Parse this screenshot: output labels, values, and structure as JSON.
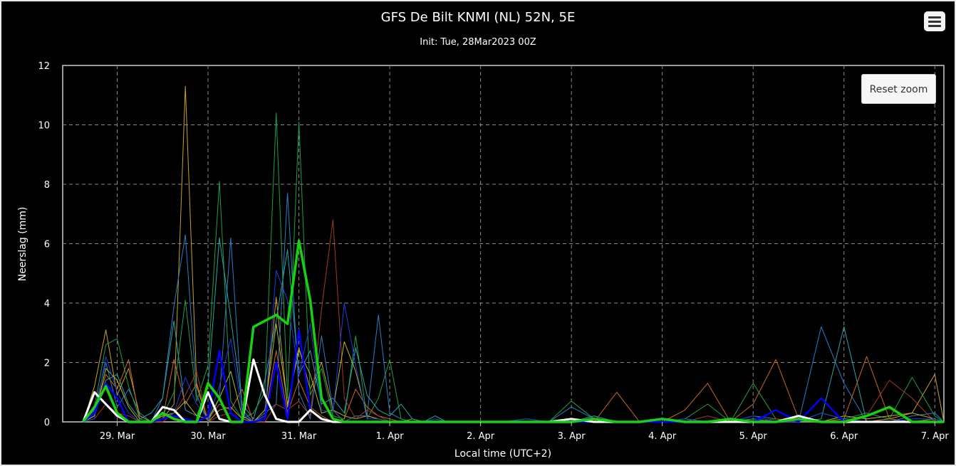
{
  "header": {
    "title": "GFS De Bilt KNMI (NL) 52N, 5E",
    "subtitle": "Init: Tue, 28Mar2023 00Z"
  },
  "controls": {
    "reset_zoom_label": "Reset zoom",
    "menu_icon": "hamburger-menu-icon"
  },
  "chart_data": {
    "type": "line",
    "title": "GFS De Bilt KNMI (NL) 52N, 5E",
    "subtitle": "Init: Tue, 28Mar2023 00Z",
    "xlabel": "Local time (UTC+2)",
    "ylabel": "Neerslag (mm)",
    "ylim": [
      0,
      12
    ],
    "yticks": [
      0,
      2,
      4,
      6,
      8,
      10,
      12
    ],
    "xlim": [
      -0.6,
      9.1
    ],
    "xticks": [
      {
        "x": 0,
        "label": "29. Mar"
      },
      {
        "x": 1,
        "label": "30. Mar"
      },
      {
        "x": 2,
        "label": "31. Mar"
      },
      {
        "x": 3,
        "label": "1. Apr"
      },
      {
        "x": 4,
        "label": "2. Apr"
      },
      {
        "x": 5,
        "label": "3. Apr"
      },
      {
        "x": 6,
        "label": "4. Apr"
      },
      {
        "x": 7,
        "label": "5. Apr"
      },
      {
        "x": 8,
        "label": "6. Apr"
      },
      {
        "x": 9,
        "label": "7. Apr"
      }
    ],
    "x_unit": "days from 29 Mar 00:00 local",
    "grid": true,
    "legend": "none",
    "colors": {
      "background": "#000000",
      "grid": "#8a8a8a",
      "axis": "#cccccc",
      "text": "#ffffff"
    },
    "x": [
      -0.375,
      -0.25,
      -0.125,
      0,
      0.125,
      0.25,
      0.375,
      0.5,
      0.625,
      0.75,
      0.875,
      1,
      1.125,
      1.25,
      1.375,
      1.5,
      1.625,
      1.75,
      1.875,
      2,
      2.125,
      2.25,
      2.375,
      2.5,
      2.625,
      2.75,
      2.875,
      3,
      3.125,
      3.25,
      3.375,
      3.5,
      3.625,
      3.75,
      3.875,
      4,
      4.25,
      4.5,
      4.75,
      5,
      5.25,
      5.5,
      5.75,
      6,
      6.25,
      6.5,
      6.75,
      7,
      7.25,
      7.5,
      7.75,
      8,
      8.25,
      8.5,
      8.75,
      9,
      9.1
    ],
    "series": [
      {
        "color": "#c9a227",
        "width": 1,
        "values": [
          0,
          1.2,
          3.1,
          0.9,
          1.8,
          0.2,
          0,
          0.1,
          0.6,
          11.3,
          1.2,
          0,
          0.4,
          0.5,
          0.1,
          0,
          0.2,
          4.2,
          0.5,
          2.5,
          1.1,
          2.0,
          0.4,
          0.2,
          0.1,
          0.2,
          0.1,
          0,
          0,
          0.1,
          0,
          0,
          0,
          0,
          0,
          0,
          0,
          0,
          0,
          0,
          0,
          0,
          0,
          0,
          0,
          0,
          0,
          0,
          0,
          0,
          0,
          0,
          0,
          0.1,
          0.3,
          1.6,
          0
        ]
      },
      {
        "color": "#2a7ec7",
        "width": 1,
        "values": [
          0,
          0.4,
          2.0,
          0.5,
          1.1,
          0.3,
          0,
          0.8,
          3.9,
          6.3,
          0.9,
          0,
          0.8,
          6.2,
          0.4,
          0,
          0.3,
          0.6,
          7.7,
          1.0,
          0.1,
          2.9,
          0.4,
          0,
          0.2,
          0.2,
          3.6,
          0.3,
          0.1,
          0,
          0,
          0.1,
          0,
          0,
          0,
          0,
          0,
          0.1,
          0,
          0.5,
          0.1,
          0,
          0,
          0,
          0.1,
          0,
          0,
          0.2,
          0.1,
          0,
          3.2,
          1.3,
          0,
          0,
          0.2,
          0.3,
          0
        ]
      },
      {
        "color": "#1f9e48",
        "width": 1,
        "values": [
          0,
          0.5,
          2.6,
          2.8,
          1.2,
          0.1,
          0,
          0.2,
          1.0,
          4.1,
          0.7,
          1.9,
          8.1,
          0.7,
          0.1,
          0.3,
          1.0,
          10.4,
          0.8,
          10.1,
          0.9,
          1.8,
          0.2,
          0.1,
          2.9,
          0.1,
          0.8,
          2.1,
          0.1,
          0,
          0,
          0.1,
          0,
          0,
          0,
          0,
          0,
          0.1,
          0,
          0.7,
          0.1,
          0,
          0,
          0,
          0.1,
          0.6,
          0,
          1.3,
          0.1,
          0,
          0.3,
          0.1,
          0.3,
          0.1,
          1.5,
          0.2,
          0
        ]
      },
      {
        "color": "#2aa3a8",
        "width": 1,
        "values": [
          0,
          0.2,
          1.4,
          1.6,
          0.6,
          0.1,
          0.3,
          0.8,
          3.4,
          0.4,
          0.2,
          1.2,
          6.2,
          3.5,
          0.6,
          0.1,
          1.4,
          3.4,
          5.8,
          1.6,
          2.4,
          0.6,
          0.8,
          0.3,
          2.5,
          0.9,
          0.4,
          0.2,
          0.6,
          0.1,
          0,
          0.2,
          0,
          0,
          0,
          0,
          0,
          0,
          0,
          0,
          0.2,
          0,
          0,
          0,
          0.1,
          0,
          0,
          0.1,
          0,
          0,
          0.1,
          3.2,
          0,
          0,
          0,
          0.1,
          0
        ]
      },
      {
        "color": "#c46a1e",
        "width": 1,
        "values": [
          0,
          0.3,
          1.6,
          1.1,
          2.1,
          0,
          0,
          0.1,
          2.1,
          0.6,
          1.3,
          0.1,
          0.6,
          0.4,
          1.1,
          0,
          0.2,
          2.4,
          0.3,
          1.4,
          0.5,
          0.2,
          0,
          0.1,
          1.1,
          0.5,
          0.2,
          0.1,
          0,
          0,
          0,
          0,
          0,
          0,
          0,
          0,
          0,
          0,
          0,
          0,
          0,
          1.0,
          0,
          0,
          0.4,
          1.3,
          0,
          0.6,
          2.1,
          0.1,
          0,
          0.1,
          2.2,
          0.1,
          0,
          0.1,
          0
        ]
      },
      {
        "color": "#a33a22",
        "width": 1,
        "values": [
          0,
          0.1,
          0.6,
          0.3,
          0.2,
          0,
          0,
          0,
          0.3,
          0.9,
          1.7,
          0,
          0.2,
          0.3,
          0,
          0,
          0,
          0.6,
          0.4,
          0.7,
          0.2,
          3.8,
          6.8,
          0.8,
          0.1,
          0.4,
          0.2,
          0,
          0,
          0,
          0,
          0,
          0,
          0,
          0,
          0,
          0,
          0,
          0,
          0,
          0,
          0,
          0,
          0,
          0,
          0.2,
          0,
          0,
          0.1,
          0,
          0,
          0,
          0.2,
          1.4,
          0.8,
          0,
          0
        ]
      },
      {
        "color": "#b5b827",
        "width": 1,
        "values": [
          0,
          0.2,
          1.8,
          1.4,
          0.5,
          0,
          0,
          0.2,
          0.3,
          0.7,
          0.2,
          0.1,
          0.8,
          1.7,
          0.2,
          0,
          0.4,
          3.3,
          0.6,
          2.4,
          1.6,
          0.3,
          0.4,
          2.7,
          1.7,
          0.2,
          0.1,
          0,
          0,
          0,
          0,
          0,
          0,
          0,
          0,
          0,
          0,
          0,
          0,
          0,
          0,
          0,
          0,
          0,
          0,
          0,
          0,
          0,
          0,
          0,
          0,
          0.2,
          0.1,
          0.2,
          0.3,
          0.1,
          0
        ]
      },
      {
        "color": "#1a3fd6",
        "width": 1,
        "values": [
          0,
          0.1,
          2.2,
          1.0,
          0.3,
          0,
          0,
          0.1,
          0.3,
          1.5,
          0.6,
          0.1,
          1.2,
          2.8,
          0.3,
          0,
          0.2,
          5.1,
          4.1,
          1.6,
          3.3,
          0.4,
          0.3,
          4.0,
          1.9,
          0.1,
          0.1,
          0,
          0,
          0,
          0,
          0.1,
          0,
          0,
          0,
          0,
          0,
          0.1,
          0,
          0,
          0.1,
          0,
          0,
          0,
          0.1,
          0,
          0,
          0.2,
          0,
          0,
          0.3,
          0.1,
          0,
          0,
          0.1,
          0.1,
          0
        ]
      },
      {
        "color": "#0000ff",
        "width": 2.5,
        "values": [
          0,
          0.3,
          1.3,
          0.8,
          0,
          0,
          0,
          0.1,
          0.2,
          0.1,
          0,
          0.2,
          2.4,
          0.3,
          0,
          0,
          0.1,
          2.0,
          0.1,
          3.1,
          0.4,
          0.1,
          0,
          0,
          0,
          0,
          0,
          0,
          0,
          0,
          0,
          0,
          0,
          0,
          0,
          0,
          0,
          0,
          0,
          0,
          0,
          0,
          0,
          0,
          0,
          0,
          0,
          0,
          0.4,
          0,
          0.8,
          0,
          0,
          0,
          0,
          0,
          0
        ]
      },
      {
        "color": "#ffffff",
        "width": 3,
        "values": [
          0,
          1.0,
          0.6,
          0.2,
          0,
          0,
          0,
          0.5,
          0.4,
          0,
          0,
          1.0,
          0.1,
          0,
          0,
          2.1,
          0.9,
          0.1,
          0,
          0,
          0.4,
          0.1,
          0,
          0,
          0,
          0,
          0,
          0,
          0,
          0,
          0,
          0,
          0,
          0,
          0,
          0,
          0,
          0,
          0,
          0.1,
          0,
          0,
          0,
          0.1,
          0,
          0,
          0,
          0,
          0,
          0.2,
          0,
          0,
          0,
          0,
          0,
          0,
          0
        ]
      },
      {
        "color": "#16d30d",
        "width": 3.5,
        "values": [
          0,
          0.5,
          1.2,
          0.3,
          0,
          0,
          0,
          0.3,
          0.1,
          0,
          0,
          1.3,
          0.8,
          0,
          0,
          3.2,
          3.4,
          3.6,
          3.3,
          6.1,
          4.1,
          0.8,
          0.1,
          0,
          0,
          0,
          0,
          0,
          0,
          0,
          0,
          0,
          0,
          0,
          0,
          0,
          0,
          0,
          0,
          0,
          0.1,
          0,
          0,
          0.1,
          0,
          0,
          0.1,
          0,
          0,
          0.1,
          0,
          0,
          0.2,
          0.5,
          0,
          0,
          0
        ]
      }
    ]
  }
}
